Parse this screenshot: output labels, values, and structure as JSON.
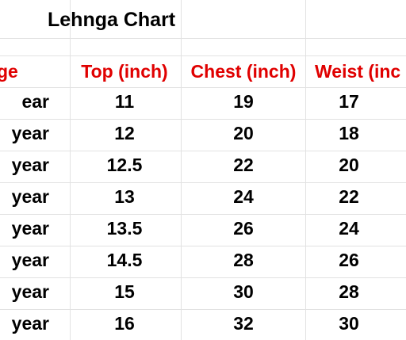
{
  "header": {
    "title": "Lehnga Chart"
  },
  "table": {
    "columns": [
      "ge",
      "Top (inch)",
      "Chest (inch)",
      "Weist (inc"
    ],
    "rows": [
      [
        "ear",
        11,
        19,
        17
      ],
      [
        "year",
        12,
        20,
        18
      ],
      [
        "year",
        12.5,
        22,
        20
      ],
      [
        "year",
        13,
        24,
        22
      ],
      [
        "year",
        13.5,
        26,
        24
      ],
      [
        "year",
        14.5,
        28,
        26
      ],
      [
        "year",
        15,
        30,
        28
      ],
      [
        "year",
        16,
        32,
        30
      ]
    ]
  }
}
